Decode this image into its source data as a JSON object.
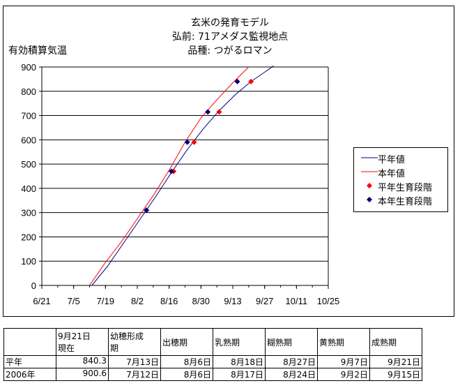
{
  "titles": [
    "玄米の発育モデル",
    "弘前: 71アメダス監視地点",
    "品種: つがるロマン"
  ],
  "chart_data": {
    "type": "line",
    "ylabel": "有効積算気温",
    "ylim": [
      0,
      900
    ],
    "yticks": [
      0,
      100,
      200,
      300,
      400,
      500,
      600,
      700,
      800,
      900
    ],
    "xlim": [
      "6/21",
      "10/25"
    ],
    "xticks": [
      "6/21",
      "7/5",
      "7/19",
      "8/2",
      "8/16",
      "8/30",
      "9/13",
      "9/27",
      "10/11",
      "10/25"
    ],
    "grid": "horizontal",
    "legend_position": "right",
    "series": [
      {
        "name": "平年値",
        "kind": "line",
        "color": "#00007f",
        "points": [
          [
            "7/13",
            0
          ],
          [
            "7/20",
            80
          ],
          [
            "7/27",
            175
          ],
          [
            "8/3",
            270
          ],
          [
            "8/10",
            365
          ],
          [
            "8/17",
            465
          ],
          [
            "8/24",
            560
          ],
          [
            "8/31",
            645
          ],
          [
            "9/7",
            720
          ],
          [
            "9/14",
            785
          ],
          [
            "9/21",
            840
          ],
          [
            "9/28",
            885
          ],
          [
            "10/1",
            905
          ]
        ]
      },
      {
        "name": "本年値",
        "kind": "line",
        "color": "#ff0000",
        "points": [
          [
            "7/12",
            0
          ],
          [
            "7/19",
            95
          ],
          [
            "7/26",
            180
          ],
          [
            "8/2",
            275
          ],
          [
            "8/9",
            370
          ],
          [
            "8/16",
            475
          ],
          [
            "8/23",
            590
          ],
          [
            "8/30",
            690
          ],
          [
            "9/6",
            765
          ],
          [
            "9/13",
            835
          ],
          [
            "9/20",
            900
          ]
        ]
      },
      {
        "name": "平年生育段階",
        "kind": "scatter",
        "color": "#ff0000",
        "points": [
          [
            "8/6",
            310
          ],
          [
            "8/18",
            470
          ],
          [
            "8/27",
            590
          ],
          [
            "9/7",
            715
          ],
          [
            "9/21",
            840
          ]
        ]
      },
      {
        "name": "本年生育段階",
        "kind": "scatter",
        "color": "#00007f",
        "points": [
          [
            "8/6",
            310
          ],
          [
            "8/17",
            470
          ],
          [
            "8/24",
            590
          ],
          [
            "9/2",
            715
          ],
          [
            "9/15",
            840
          ]
        ]
      }
    ]
  },
  "table": {
    "header": [
      "",
      "9月21日\n現在",
      "幼穂形成\n期",
      "出穂期",
      "乳熟期",
      "糊熟期",
      "黄熟期",
      "成熟期"
    ],
    "rows": [
      [
        "平年",
        "840.3",
        "7月13日",
        "8月6日",
        "8月18日",
        "8月27日",
        "9月7日",
        "9月21日"
      ],
      [
        "2006年",
        "900.6",
        "7月12日",
        "8月6日",
        "8月17日",
        "8月24日",
        "9月2日",
        "9月15日"
      ]
    ]
  }
}
